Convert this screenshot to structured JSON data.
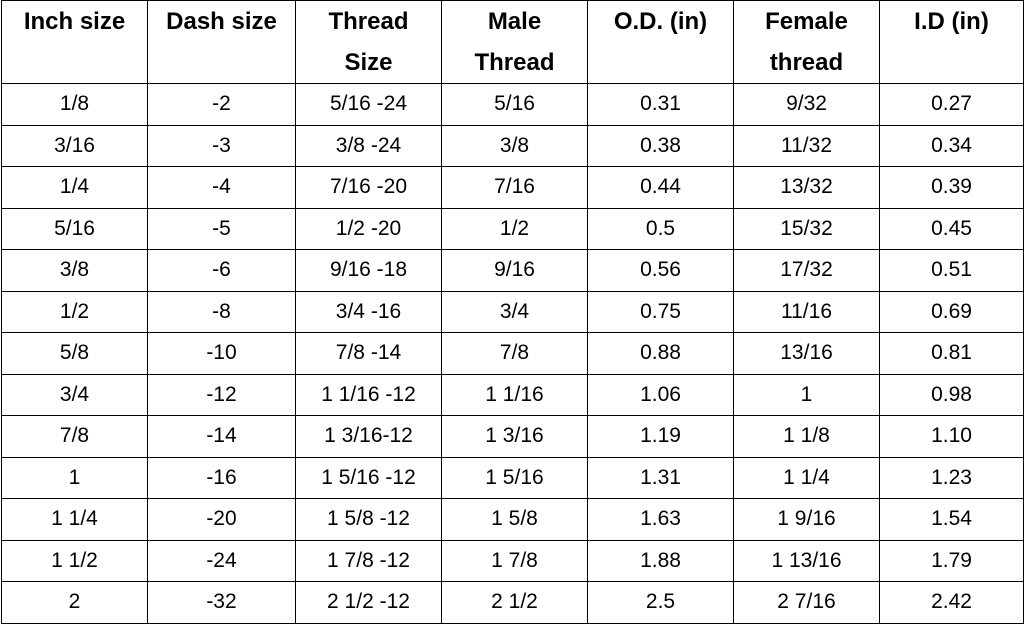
{
  "table": {
    "headers": [
      [
        "Inch size"
      ],
      [
        "Dash size"
      ],
      [
        "Thread",
        "Size"
      ],
      [
        "Male",
        "Thread"
      ],
      [
        "O.D. (in)"
      ],
      [
        "Female",
        "thread"
      ],
      [
        "I.D (in)"
      ]
    ],
    "rows": [
      [
        "1/8",
        "-2",
        "5/16 -24",
        "5/16",
        "0.31",
        "9/32",
        "0.27"
      ],
      [
        "3/16",
        "-3",
        "3/8 -24",
        "3/8",
        "0.38",
        "11/32",
        "0.34"
      ],
      [
        "1/4",
        "-4",
        "7/16 -20",
        "7/16",
        "0.44",
        "13/32",
        "0.39"
      ],
      [
        "5/16",
        "-5",
        "1/2 -20",
        "1/2",
        "0.5",
        "15/32",
        "0.45"
      ],
      [
        "3/8",
        "-6",
        "9/16 -18",
        "9/16",
        "0.56",
        "17/32",
        "0.51"
      ],
      [
        "1/2",
        "-8",
        "3/4 -16",
        "3/4",
        "0.75",
        "11/16",
        "0.69"
      ],
      [
        "5/8",
        "-10",
        "7/8 -14",
        "7/8",
        "0.88",
        "13/16",
        "0.81"
      ],
      [
        "3/4",
        "-12",
        "1 1/16 -12",
        "1 1/16",
        "1.06",
        "1",
        "0.98"
      ],
      [
        "7/8",
        "-14",
        "1 3/16-12",
        "1 3/16",
        "1.19",
        "1 1/8",
        "1.10"
      ],
      [
        "1",
        "-16",
        "1 5/16 -12",
        "1 5/16",
        "1.31",
        "1 1/4",
        "1.23"
      ],
      [
        "1 1/4",
        "-20",
        "1 5/8 -12",
        "1 5/8",
        "1.63",
        "1 9/16",
        "1.54"
      ],
      [
        "1 1/2",
        "-24",
        "1 7/8 -12",
        "1 7/8",
        "1.88",
        "1 13/16",
        "1.79"
      ],
      [
        "2",
        "-32",
        "2 1/2 -12",
        "2 1/2",
        "2.5",
        "2 7/16",
        "2.42"
      ]
    ]
  }
}
